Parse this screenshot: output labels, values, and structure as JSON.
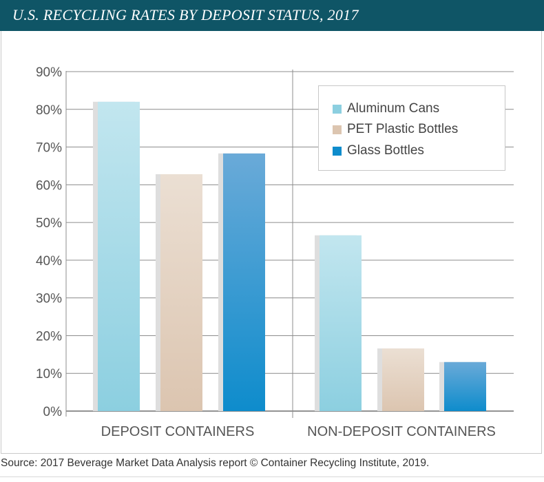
{
  "header": {
    "title": "U.S. RECYCLING RATES BY DEPOSIT STATUS, 2017"
  },
  "source": "Source: 2017 Beverage Market Data Analysis report © Container Recycling Institute, 2019.",
  "colors": {
    "header_bg": "#0f5566",
    "aluminum_cans": "#8ccfe0",
    "pet_plastic_bottles": "#dcc5b0",
    "glass_bottles": "#0e8ccc"
  },
  "chart_data": {
    "type": "bar",
    "title": "U.S. RECYCLING RATES BY DEPOSIT STATUS, 2017",
    "categories": [
      "DEPOSIT CONTAINERS",
      "NON-DEPOSIT CONTAINERS"
    ],
    "series": [
      {
        "name": "Aluminum Cans",
        "values": [
          82,
          46.6
        ]
      },
      {
        "name": "PET Plastic Bottles",
        "values": [
          62.8,
          16.6
        ]
      },
      {
        "name": "Glass Bottles",
        "values": [
          68.3,
          13
        ]
      }
    ],
    "ylim": [
      0,
      90
    ],
    "y_ticks": [
      "0%",
      "10%",
      "20%",
      "30%",
      "40%",
      "50%",
      "60%",
      "70%",
      "80%",
      "90%"
    ],
    "xlabel": "",
    "ylabel": "",
    "grid": true,
    "legend_position": "top-right"
  }
}
